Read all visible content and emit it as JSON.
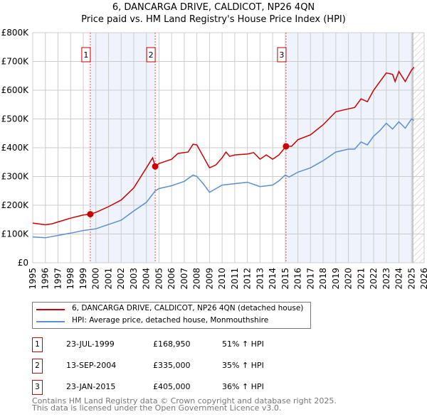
{
  "chart_data": {
    "type": "line",
    "title": "6, DANCARGA DRIVE, CALDICOT, NP26 4QN",
    "subtitle": "Price paid vs. HM Land Registry's House Price Index (HPI)",
    "xlim": [
      1995,
      2026
    ],
    "ylim": [
      0,
      800000
    ],
    "x_ticks": [
      "1995",
      "1996",
      "1997",
      "1998",
      "1999",
      "2000",
      "2001",
      "2002",
      "2003",
      "2004",
      "2005",
      "2006",
      "2007",
      "2008",
      "2009",
      "2010",
      "2011",
      "2012",
      "2013",
      "2014",
      "2015",
      "2016",
      "2017",
      "2018",
      "2019",
      "2020",
      "2021",
      "2022",
      "2023",
      "2024",
      "2025",
      "2026"
    ],
    "y_ticks": [
      {
        "v": 0,
        "label": "£0"
      },
      {
        "v": 100000,
        "label": "£100K"
      },
      {
        "v": 200000,
        "label": "£200K"
      },
      {
        "v": 300000,
        "label": "£300K"
      },
      {
        "v": 400000,
        "label": "£400K"
      },
      {
        "v": 500000,
        "label": "£500K"
      },
      {
        "v": 600000,
        "label": "£600K"
      },
      {
        "v": 700000,
        "label": "£700K"
      },
      {
        "v": 800000,
        "label": "£800K"
      }
    ],
    "grid": true,
    "series": [
      {
        "name": "6, DANCARGA DRIVE, CALDICOT, NP26 4QN (detached house)",
        "color": "#cc0000",
        "x": [
          1995,
          1996,
          1996.5,
          1997,
          1998,
          1999,
          1999.56,
          2000,
          2001,
          2002,
          2003,
          2003.5,
          2004,
          2004.5,
          2004.7,
          2005,
          2006,
          2006.5,
          2007.3,
          2007.7,
          2008,
          2008.5,
          2009,
          2009.5,
          2010,
          2010.3,
          2010.6,
          2011,
          2012,
          2012.5,
          2013,
          2013.5,
          2014,
          2014.5,
          2015.06,
          2015.5,
          2016,
          2017,
          2018,
          2019,
          2019.5,
          2020,
          2020.5,
          2021,
          2021.5,
          2022,
          2022.5,
          2023,
          2023.5,
          2023.7,
          2024,
          2024.5,
          2025,
          2025.2
        ],
        "y": [
          138000,
          132000,
          135000,
          142000,
          155000,
          166000,
          168950,
          175000,
          195000,
          218000,
          260000,
          295000,
          330000,
          365000,
          335000,
          345000,
          360000,
          380000,
          385000,
          412000,
          410000,
          370000,
          330000,
          340000,
          365000,
          385000,
          370000,
          375000,
          378000,
          383000,
          360000,
          375000,
          360000,
          375000,
          405000,
          405000,
          428000,
          445000,
          480000,
          525000,
          530000,
          535000,
          540000,
          570000,
          560000,
          600000,
          630000,
          660000,
          655000,
          630000,
          665000,
          630000,
          670000,
          680000
        ]
      },
      {
        "name": "HPI: Average price, detached house, Monmouthshire",
        "color": "#5b8fd0",
        "x": [
          1995,
          1996,
          1997,
          1998,
          1999,
          2000,
          2001,
          2002,
          2003,
          2004,
          2004.7,
          2005,
          2006,
          2007,
          2007.7,
          2008,
          2008.5,
          2009,
          2010,
          2011,
          2012,
          2013,
          2014,
          2014.5,
          2015,
          2015.3,
          2016,
          2017,
          2018,
          2019,
          2020,
          2020.5,
          2021,
          2021.5,
          2022,
          2022.5,
          2023,
          2023.5,
          2024,
          2024.5,
          2025,
          2025.2
        ],
        "y": [
          90000,
          87000,
          95000,
          103000,
          112000,
          118000,
          133000,
          148000,
          180000,
          210000,
          250000,
          258000,
          268000,
          283000,
          305000,
          300000,
          275000,
          245000,
          270000,
          275000,
          280000,
          265000,
          270000,
          285000,
          305000,
          298000,
          315000,
          330000,
          355000,
          385000,
          395000,
          395000,
          420000,
          410000,
          440000,
          460000,
          485000,
          465000,
          490000,
          468000,
          500000,
          495000
        ]
      }
    ],
    "sales": [
      {
        "num": "1",
        "x": 1999.56,
        "price": 168950,
        "date": "23-JUL-1999",
        "price_label": "£168,950",
        "hpi": "51% ↑ HPI"
      },
      {
        "num": "2",
        "x": 2004.7,
        "price": 335000,
        "date": "13-SEP-2004",
        "price_label": "£335,000",
        "hpi": "35% ↑ HPI"
      },
      {
        "num": "3",
        "x": 2015.06,
        "price": 405000,
        "date": "23-JAN-2015",
        "price_label": "£405,000",
        "hpi": "36% ↑ HPI"
      }
    ],
    "data_end": 2025.1,
    "legend_position": "below"
  },
  "footer": {
    "line1": "Contains HM Land Registry data © Crown copyright and database right 2025.",
    "line2": "This data is licensed under the Open Government Licence v3.0."
  }
}
